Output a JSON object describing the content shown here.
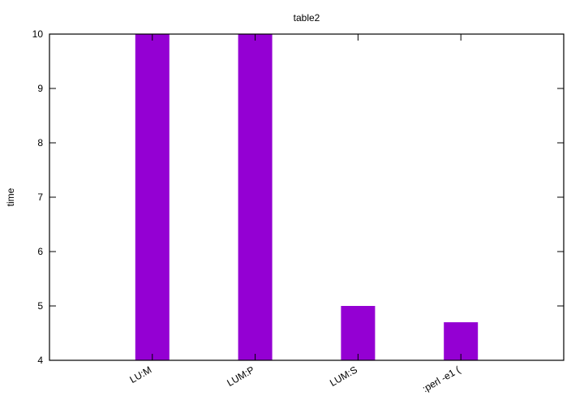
{
  "chart_data": {
    "type": "bar",
    "title": "table2",
    "ylabel": "time",
    "xlabel": "",
    "categories": [
      "LU:M",
      "LUM:P",
      "LUM:S",
      ":perl -e1 ("
    ],
    "values": [
      10,
      10,
      5,
      4.7
    ],
    "ylim": [
      4,
      10
    ],
    "yticks": [
      4,
      5,
      6,
      7,
      8,
      9,
      10
    ],
    "grid": false,
    "legend": "none",
    "bar_color": "#9400d3"
  }
}
